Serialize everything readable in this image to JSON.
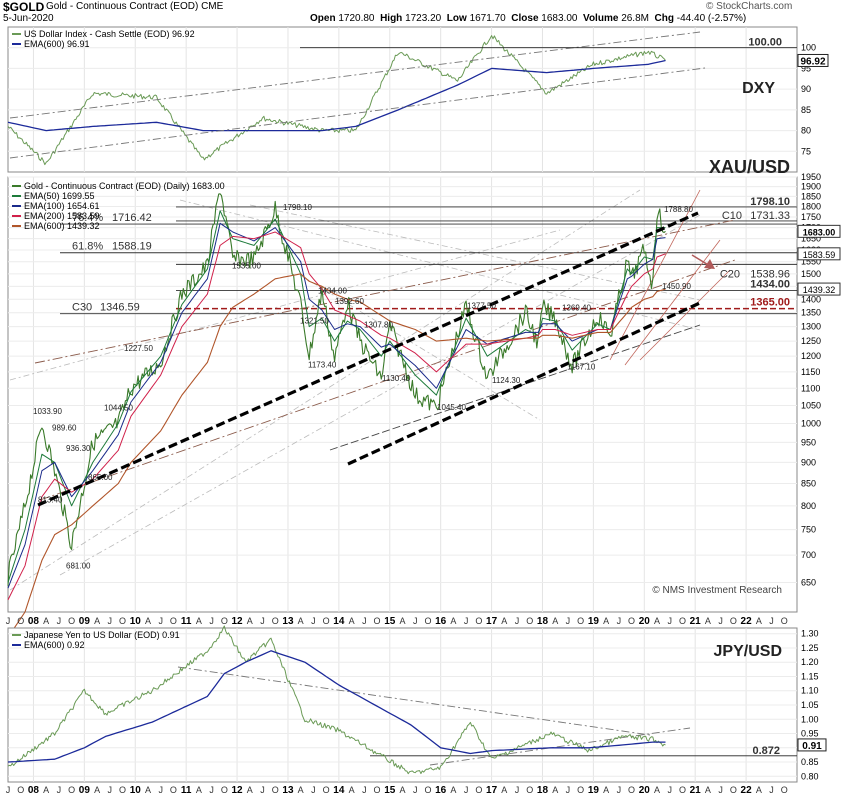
{
  "header": {
    "symbol": "$GOLD",
    "name": "Gold - Continuous Contract (EOD)",
    "exchange": "CME",
    "date": "5-Jun-2020",
    "watermark": "© StockCharts.com",
    "open_label": "Open",
    "open": "1720.80",
    "high_label": "High",
    "high": "1723.20",
    "low_label": "Low",
    "low": "1671.70",
    "close_label": "Close",
    "close": "1683.00",
    "volume_label": "Volume",
    "volume": "26.8M",
    "chg_label": "Chg",
    "chg": "-44.40 (-2.57%)"
  },
  "colors": {
    "price": "#3a7a2a",
    "dxy_line": "#6a9a56",
    "ema600_blue": "#1c2a9a",
    "ema50": "#1d7a3a",
    "ema100": "#1a2a8a",
    "ema200": "#d0204a",
    "ema600_brown": "#b0552a",
    "arrow": "#b05a5a",
    "red_level": "#a01a1a"
  },
  "dxy": {
    "legend_line1": "US Dollar Index - Cash Settle (EOD) 96.92",
    "legend_line2": "EMA(600) 96.91",
    "label": "DXY",
    "last_box": "96.92",
    "level": "100.00"
  },
  "gold": {
    "legend_line1": "Gold - Continuous Contract (EOD) (Daily) 1683.00",
    "ema50": "EMA(50) 1699.55",
    "ema100": "EMA(100) 1654.61",
    "ema200": "EMA(200) 1583.59",
    "ema600": "EMA(600) 1439.32",
    "label": "XAU/USD",
    "fib_764": "76.4%",
    "fib_764_val": "1716.42",
    "fib_618": "61.8%",
    "fib_618_val": "1588.19",
    "c10": "C10",
    "c10_val": "1731.33",
    "c20": "C20",
    "c20_val": "1538.96",
    "c30": "C30",
    "c30_val": "1346.59",
    "lvl_1798": "1798.10",
    "lvl_1434": "1434.00",
    "lvl_1365": "1365.00",
    "box_last": "1683.00",
    "box_1583": "1583.59",
    "box_1439": "1439.32",
    "credit": "© NMS Investment Research",
    "annotations": [
      "1798.10",
      "1535.00",
      "1434.00",
      "1392.60",
      "1321.50",
      "1307.80",
      "1377.50",
      "1369.40",
      "1173.40",
      "1130.40",
      "1045.40",
      "1124.30",
      "1167.10",
      "1450.90",
      "1788.80",
      "1227.50",
      "1044.50",
      "1033.90",
      "989.60",
      "936.30",
      "865.00",
      "813.40",
      "681.00"
    ]
  },
  "jpy": {
    "legend_line1": "Japanese Yen to US Dollar (EOD) 0.91",
    "legend_line2": "EMA(600) 0.92",
    "label": "JPY/USD",
    "level": "0.872",
    "last_box": "0.91"
  },
  "chart_data": [
    {
      "type": "line",
      "title": "US Dollar Index - Cash Settle (EOD)",
      "x": [
        "2007-07",
        "2008-04",
        "2009-03",
        "2010-06",
        "2011-05",
        "2012-07",
        "2013-09",
        "2014-05",
        "2015-03",
        "2016-05",
        "2017-01",
        "2018-02",
        "2019-01",
        "2020-02",
        "2020-06"
      ],
      "series": [
        {
          "name": "US Dollar Index - Cash Settle (EOD)",
          "values": [
            81,
            72,
            89,
            88,
            73,
            83,
            80,
            80,
            99,
            92,
            103,
            89,
            96,
            99,
            96.92
          ]
        },
        {
          "name": "EMA(600)",
          "values": [
            82,
            80,
            81,
            82,
            80,
            80,
            80,
            81,
            85,
            91,
            95,
            94,
            95,
            96,
            96.91
          ]
        }
      ],
      "ylim": [
        70,
        105
      ],
      "yticks": [
        75,
        80,
        85,
        90,
        95,
        100
      ]
    },
    {
      "type": "line",
      "title": "Gold - Continuous Contract (EOD) (Daily)",
      "x": [
        "2007-07",
        "2007-11",
        "2008-03",
        "2008-06",
        "2008-10",
        "2009-03",
        "2009-09",
        "2009-12",
        "2010-07",
        "2010-12",
        "2011-06",
        "2011-09",
        "2011-12",
        "2012-05",
        "2012-10",
        "2013-04",
        "2013-06",
        "2013-09",
        "2013-12",
        "2014-03",
        "2014-06",
        "2014-11",
        "2015-01",
        "2015-07",
        "2015-12",
        "2016-07",
        "2016-12",
        "2017-09",
        "2017-12",
        "2018-01",
        "2018-04",
        "2018-08",
        "2019-02",
        "2019-05",
        "2019-09",
        "2019-10",
        "2020-01",
        "2020-03",
        "2020-04",
        "2020-06"
      ],
      "series": [
        {
          "name": "Gold - Continuous Contract (EOD) (Daily)",
          "values": [
            660,
            800,
            1000,
            880,
            720,
            950,
            1000,
            1100,
            1180,
            1420,
            1535,
            1900,
            1560,
            1560,
            1790,
            1380,
            1200,
            1434,
            1190,
            1392,
            1250,
            1130,
            1307,
            1080,
            1045,
            1377,
            1130,
            1350,
            1240,
            1369,
            1330,
            1167,
            1340,
            1270,
            1550,
            1480,
            1600,
            1450,
            1780,
            1683
          ]
        },
        {
          "name": "EMA(50)",
          "values": [
            650,
            750,
            920,
            900,
            800,
            900,
            1000,
            1090,
            1200,
            1380,
            1520,
            1780,
            1650,
            1620,
            1740,
            1500,
            1300,
            1330,
            1250,
            1320,
            1290,
            1200,
            1250,
            1140,
            1080,
            1330,
            1200,
            1290,
            1270,
            1330,
            1320,
            1220,
            1310,
            1290,
            1520,
            1500,
            1570,
            1560,
            1700,
            1700
          ]
        },
        {
          "name": "EMA(100)",
          "values": [
            640,
            720,
            880,
            900,
            820,
            880,
            970,
            1060,
            1180,
            1350,
            1480,
            1720,
            1680,
            1640,
            1700,
            1550,
            1400,
            1360,
            1290,
            1310,
            1300,
            1230,
            1240,
            1170,
            1100,
            1290,
            1240,
            1280,
            1280,
            1310,
            1310,
            1250,
            1290,
            1290,
            1480,
            1490,
            1540,
            1560,
            1650,
            1654.61
          ]
        },
        {
          "name": "EMA(200)",
          "values": [
            620,
            680,
            820,
            860,
            830,
            860,
            930,
            1020,
            1140,
            1300,
            1420,
            1620,
            1660,
            1650,
            1680,
            1610,
            1500,
            1440,
            1360,
            1340,
            1320,
            1270,
            1260,
            1210,
            1150,
            1240,
            1240,
            1260,
            1270,
            1290,
            1290,
            1270,
            1290,
            1290,
            1420,
            1450,
            1500,
            1520,
            1570,
            1583.59
          ]
        },
        {
          "name": "EMA(600)",
          "values": [
            560,
            600,
            690,
            740,
            760,
            800,
            850,
            900,
            980,
            1080,
            1180,
            1300,
            1370,
            1420,
            1480,
            1500,
            1470,
            1450,
            1420,
            1400,
            1390,
            1340,
            1320,
            1290,
            1250,
            1260,
            1250,
            1260,
            1260,
            1270,
            1270,
            1260,
            1280,
            1280,
            1350,
            1370,
            1400,
            1410,
            1430,
            1439.32
          ]
        }
      ],
      "ylim": [
        600,
        1950
      ],
      "yticks": [
        650,
        700,
        750,
        800,
        850,
        900,
        950,
        1000,
        1050,
        1100,
        1150,
        1200,
        1250,
        1300,
        1350,
        1400,
        1450,
        1500,
        1550,
        1600,
        1650,
        1700,
        1750,
        1800,
        1850,
        1900,
        1950
      ],
      "horizontal_levels": [
        1798.1,
        1731.33,
        1716.42,
        1588.19,
        1538.96,
        1434.0,
        1365.0,
        1346.59
      ]
    },
    {
      "type": "line",
      "title": "Japanese Yen to US Dollar (EOD)",
      "x": [
        "2007-07",
        "2008-06",
        "2009-01",
        "2009-06",
        "2010-05",
        "2011-06",
        "2011-10",
        "2012-03",
        "2012-09",
        "2013-05",
        "2014-01",
        "2015-06",
        "2016-01",
        "2016-08",
        "2017-01",
        "2018-03",
        "2018-12",
        "2019-08",
        "2020-03",
        "2020-06"
      ],
      "series": [
        {
          "name": "Japanese Yen to US Dollar (EOD)",
          "values": [
            0.83,
            0.95,
            1.1,
            1.02,
            1.1,
            1.24,
            1.32,
            1.2,
            1.28,
            1.0,
            0.96,
            0.81,
            0.83,
            0.99,
            0.86,
            0.95,
            0.89,
            0.94,
            0.93,
            0.91
          ]
        },
        {
          "name": "EMA(600)",
          "values": [
            0.85,
            0.86,
            0.9,
            0.94,
            0.99,
            1.08,
            1.16,
            1.2,
            1.24,
            1.2,
            1.12,
            0.98,
            0.9,
            0.88,
            0.89,
            0.9,
            0.9,
            0.91,
            0.92,
            0.92
          ]
        }
      ],
      "ylim": [
        0.78,
        1.32
      ],
      "yticks": [
        0.8,
        0.85,
        0.9,
        0.95,
        1.0,
        1.05,
        1.1,
        1.15,
        1.2,
        1.25,
        1.3
      ]
    }
  ],
  "x_axis": {
    "years": [
      "08",
      "09",
      "10",
      "11",
      "12",
      "13",
      "14",
      "15",
      "16",
      "17",
      "18",
      "19",
      "20",
      "21",
      "22"
    ],
    "months": [
      "J",
      "A",
      "J",
      "O"
    ]
  }
}
